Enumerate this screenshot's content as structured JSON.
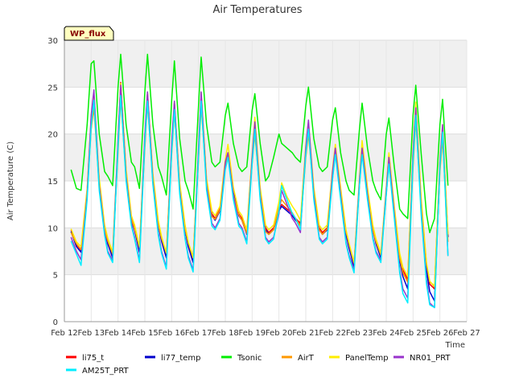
{
  "chart_data": {
    "type": "line",
    "title": "Air Temperatures",
    "xlabel": "Time",
    "ylabel": "Air Temperature (C)",
    "site_tag": "WP_flux",
    "xlim": [
      12,
      27
    ],
    "ylim": [
      0,
      30
    ],
    "x_ticks": [
      12,
      13,
      14,
      15,
      16,
      17,
      18,
      19,
      20,
      21,
      22,
      23,
      24,
      25,
      26,
      27
    ],
    "x_tick_labels": [
      "Feb 12",
      "Feb 13",
      "Feb 14",
      "Feb 15",
      "Feb 16",
      "Feb 17",
      "Feb 18",
      "Feb 19",
      "Feb 20",
      "Feb 21",
      "Feb 22",
      "Feb 23",
      "Feb 24",
      "Feb 25",
      "Feb 26",
      "Feb 27"
    ],
    "y_ticks": [
      0,
      5,
      10,
      15,
      20,
      25,
      30
    ],
    "y_tick_labels": [
      "0",
      "5",
      "10",
      "15",
      "20",
      "25",
      "30"
    ],
    "grid": true,
    "background_bands": true,
    "legend_position": "bottom",
    "x": [
      12.25,
      12.45,
      12.62,
      12.85,
      13.0,
      13.1,
      13.3,
      13.5,
      13.62,
      13.8,
      14.0,
      14.1,
      14.3,
      14.5,
      14.62,
      14.8,
      15.0,
      15.1,
      15.3,
      15.5,
      15.62,
      15.8,
      16.0,
      16.1,
      16.3,
      16.5,
      16.62,
      16.8,
      17.0,
      17.1,
      17.3,
      17.5,
      17.62,
      17.8,
      18.0,
      18.1,
      18.3,
      18.5,
      18.62,
      18.8,
      19.0,
      19.1,
      19.3,
      19.5,
      19.62,
      19.8,
      20.0,
      20.1,
      20.3,
      20.5,
      20.62,
      20.8,
      21.0,
      21.1,
      21.3,
      21.5,
      21.62,
      21.8,
      22.0,
      22.1,
      22.3,
      22.5,
      22.62,
      22.8,
      23.0,
      23.1,
      23.3,
      23.5,
      23.62,
      23.8,
      24.0,
      24.1,
      24.3,
      24.5,
      24.62,
      24.8,
      25.0,
      25.1,
      25.3,
      25.5,
      25.62,
      25.8,
      26.0,
      26.1,
      26.3
    ],
    "series": [
      {
        "name": "li75_t",
        "color": "#ff0000",
        "values": [
          9.8,
          8.2,
          7.6,
          14.0,
          21.5,
          24.0,
          15.0,
          10.0,
          8.5,
          7.0,
          19.0,
          25.5,
          16.0,
          11.0,
          10.0,
          7.6,
          19.5,
          24.3,
          15.5,
          10.5,
          8.8,
          7.0,
          18.5,
          23.3,
          14.5,
          10.0,
          8.2,
          6.5,
          18.0,
          24.2,
          15.0,
          11.5,
          11.0,
          12.0,
          17.0,
          18.0,
          14.0,
          11.5,
          11.0,
          9.5,
          17.5,
          21.0,
          14.0,
          10.0,
          9.5,
          10.0,
          12.0,
          12.5,
          12.0,
          11.5,
          11.0,
          10.5,
          18.5,
          21.0,
          14.0,
          10.0,
          9.5,
          10.0,
          16.0,
          18.5,
          14.0,
          9.5,
          8.0,
          6.0,
          15.0,
          18.8,
          14.0,
          10.0,
          8.5,
          7.0,
          14.0,
          17.8,
          12.0,
          7.0,
          5.5,
          4.5,
          18.0,
          23.0,
          13.0,
          6.0,
          4.0,
          3.5,
          17.0,
          20.5,
          9.0
        ]
      },
      {
        "name": "li77_temp",
        "color": "#0000cc",
        "values": [
          9.6,
          8.0,
          7.4,
          13.8,
          21.2,
          23.7,
          14.8,
          9.8,
          8.3,
          6.8,
          18.7,
          25.0,
          15.7,
          10.8,
          9.8,
          7.4,
          19.2,
          24.0,
          15.2,
          10.3,
          8.6,
          6.8,
          18.2,
          23.0,
          14.2,
          9.8,
          8.0,
          6.3,
          17.7,
          23.9,
          14.7,
          11.3,
          10.8,
          11.8,
          16.7,
          17.7,
          13.7,
          11.3,
          10.8,
          9.3,
          17.2,
          20.7,
          13.7,
          9.8,
          9.3,
          9.8,
          11.8,
          12.3,
          11.8,
          11.3,
          10.8,
          10.3,
          18.2,
          20.7,
          13.7,
          9.8,
          9.3,
          9.8,
          15.7,
          18.2,
          13.7,
          9.3,
          7.8,
          5.8,
          14.7,
          18.5,
          13.7,
          9.8,
          8.3,
          6.8,
          13.7,
          17.5,
          11.7,
          6.5,
          4.8,
          3.5,
          17.6,
          22.6,
          12.6,
          5.5,
          3.2,
          2.2,
          16.6,
          20.0,
          9.0
        ]
      },
      {
        "name": "Tsonic",
        "color": "#00ee00",
        "values": [
          16.2,
          14.2,
          14.0,
          21.0,
          27.5,
          27.8,
          20.0,
          16.0,
          15.5,
          14.5,
          25.0,
          28.5,
          21.0,
          17.0,
          16.5,
          14.2,
          24.5,
          28.5,
          21.0,
          16.5,
          15.5,
          13.5,
          23.5,
          27.8,
          19.5,
          15.0,
          14.0,
          12.0,
          23.0,
          28.2,
          21.0,
          17.0,
          16.5,
          17.0,
          22.0,
          23.3,
          19.0,
          16.5,
          16.0,
          16.5,
          22.5,
          24.3,
          19.0,
          15.0,
          15.5,
          17.5,
          20.0,
          19.0,
          18.5,
          18.0,
          17.5,
          17.0,
          23.0,
          25.0,
          19.5,
          16.5,
          16.0,
          16.5,
          21.5,
          22.8,
          18.0,
          15.0,
          14.0,
          13.5,
          20.5,
          23.3,
          18.5,
          15.0,
          14.0,
          13.0,
          20.0,
          21.7,
          16.5,
          12.0,
          11.5,
          11.0,
          22.0,
          25.2,
          18.0,
          11.5,
          9.5,
          11.0,
          21.0,
          23.7,
          14.5
        ]
      },
      {
        "name": "AirT",
        "color": "#ff9900",
        "values": [
          9.5,
          8.3,
          7.7,
          13.5,
          20.5,
          22.8,
          14.5,
          9.8,
          8.6,
          7.2,
          18.0,
          23.8,
          15.3,
          10.9,
          9.9,
          7.9,
          18.5,
          23.3,
          14.8,
          10.4,
          8.9,
          7.3,
          17.7,
          22.4,
          14.0,
          9.9,
          8.4,
          6.9,
          17.2,
          23.0,
          14.6,
          11.2,
          10.9,
          11.9,
          16.5,
          17.9,
          13.5,
          11.4,
          10.8,
          9.4,
          16.8,
          20.0,
          13.5,
          9.6,
          9.3,
          9.8,
          12.2,
          13.0,
          12.3,
          11.6,
          11.0,
          10.2,
          17.5,
          20.0,
          13.5,
          9.8,
          9.3,
          9.9,
          15.3,
          18.0,
          13.5,
          9.6,
          8.2,
          6.2,
          14.5,
          18.2,
          13.5,
          9.8,
          8.5,
          7.1,
          13.5,
          16.8,
          11.5,
          6.8,
          5.2,
          4.2,
          16.5,
          21.5,
          12.2,
          6.2,
          4.3,
          3.7,
          16.0,
          19.5,
          8.5
        ]
      },
      {
        "name": "PanelTemp",
        "color": "#ffee00",
        "values": [
          9.9,
          8.5,
          8.0,
          14.2,
          21.8,
          24.3,
          15.3,
          10.3,
          8.9,
          7.4,
          19.3,
          25.4,
          16.3,
          11.3,
          10.3,
          8.0,
          19.8,
          24.4,
          15.8,
          10.8,
          9.1,
          7.3,
          18.8,
          23.4,
          14.8,
          10.3,
          8.5,
          6.8,
          18.3,
          24.4,
          15.3,
          11.8,
          11.3,
          12.3,
          17.3,
          18.9,
          14.3,
          11.8,
          11.3,
          9.8,
          17.8,
          21.8,
          14.3,
          10.3,
          9.8,
          10.3,
          12.8,
          14.8,
          13.3,
          12.3,
          11.8,
          10.8,
          18.8,
          21.3,
          14.3,
          10.3,
          9.8,
          10.3,
          16.3,
          18.9,
          14.3,
          9.8,
          8.3,
          6.3,
          15.3,
          19.3,
          14.3,
          10.3,
          8.8,
          7.3,
          14.3,
          18.0,
          12.3,
          7.3,
          5.8,
          4.8,
          18.3,
          23.4,
          13.3,
          6.3,
          4.3,
          3.8,
          17.3,
          21.0,
          9.3
        ]
      },
      {
        "name": "NR01_PRT",
        "color": "#9933cc",
        "values": [
          9.0,
          7.5,
          6.6,
          13.5,
          22.0,
          24.7,
          14.5,
          9.5,
          7.5,
          6.5,
          19.5,
          25.2,
          15.5,
          10.5,
          9.0,
          6.5,
          20.0,
          24.5,
          15.0,
          9.5,
          7.5,
          5.8,
          19.0,
          23.5,
          14.0,
          9.0,
          7.0,
          5.5,
          18.5,
          24.5,
          14.5,
          10.5,
          10.0,
          11.0,
          17.0,
          18.0,
          13.5,
          10.5,
          10.0,
          8.5,
          17.5,
          21.3,
          13.5,
          9.0,
          8.5,
          9.0,
          11.5,
          14.0,
          12.5,
          11.0,
          10.5,
          9.5,
          18.5,
          21.5,
          13.5,
          9.0,
          8.5,
          9.0,
          16.0,
          18.5,
          13.5,
          8.5,
          7.0,
          5.5,
          15.0,
          18.5,
          13.5,
          9.0,
          7.5,
          6.5,
          14.0,
          17.5,
          11.5,
          5.5,
          3.5,
          2.5,
          18.0,
          22.8,
          12.0,
          4.5,
          2.0,
          1.5,
          17.0,
          21.0,
          7.0
        ]
      },
      {
        "name": "AM25T_PRT",
        "color": "#00eeff",
        "values": [
          8.6,
          7.2,
          6.0,
          13.0,
          20.8,
          23.6,
          14.0,
          9.2,
          7.3,
          6.3,
          18.5,
          24.1,
          15.0,
          10.2,
          8.8,
          6.3,
          19.0,
          23.5,
          14.6,
          9.2,
          7.3,
          5.6,
          18.0,
          22.6,
          13.6,
          8.8,
          6.8,
          5.3,
          17.5,
          23.5,
          14.0,
          10.2,
          9.8,
          10.8,
          16.2,
          17.5,
          13.0,
          10.2,
          9.8,
          8.3,
          16.8,
          20.5,
          13.0,
          8.8,
          8.3,
          8.8,
          11.8,
          14.5,
          13.0,
          11.5,
          11.0,
          9.8,
          17.8,
          20.5,
          13.0,
          8.8,
          8.3,
          8.8,
          15.2,
          17.8,
          13.0,
          8.3,
          6.8,
          5.2,
          14.5,
          17.8,
          13.0,
          8.8,
          7.3,
          6.3,
          13.5,
          16.8,
          11.0,
          5.2,
          3.0,
          2.0,
          17.0,
          22.0,
          11.5,
          4.0,
          1.8,
          1.5,
          16.5,
          20.2,
          7.0
        ]
      }
    ]
  }
}
